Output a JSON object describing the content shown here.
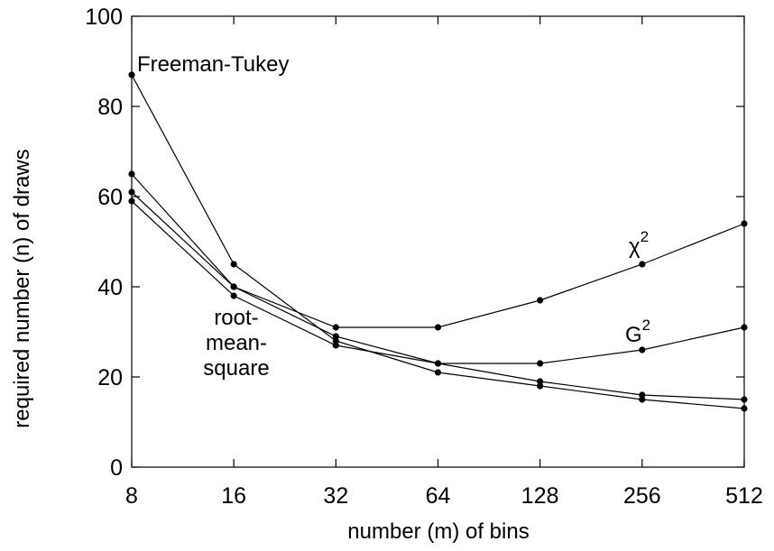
{
  "chart_data": {
    "type": "line",
    "xlabel": "number (m) of bins",
    "ylabel": "required number (n) of draws",
    "x": [
      8,
      16,
      32,
      64,
      128,
      256,
      512
    ],
    "x_scale": "log2",
    "xticks": [
      "8",
      "16",
      "32",
      "64",
      "128",
      "256",
      "512"
    ],
    "yticks": [
      "0",
      "20",
      "40",
      "60",
      "80",
      "100"
    ],
    "ylim": [
      0,
      100
    ],
    "grid": false,
    "series": [
      {
        "name": "Freeman-Tukey",
        "values": [
          87,
          45,
          28,
          21,
          18,
          15,
          13
        ]
      },
      {
        "name": "χ2",
        "values": [
          65,
          40,
          31,
          31,
          37,
          45,
          54
        ]
      },
      {
        "name": "G2",
        "values": [
          61,
          40,
          29,
          23,
          23,
          26,
          31
        ]
      },
      {
        "name": "root-mean-square",
        "values": [
          59,
          38,
          27,
          23,
          19,
          16,
          15
        ]
      }
    ],
    "annotations": {
      "freeman_tukey": "Freeman-Tukey",
      "chi_base": "χ",
      "chi_sup": "2",
      "g_base": "G",
      "g_sup": "2",
      "rms_line1": "root-",
      "rms_line2": "mean-",
      "rms_line3": "square"
    }
  }
}
